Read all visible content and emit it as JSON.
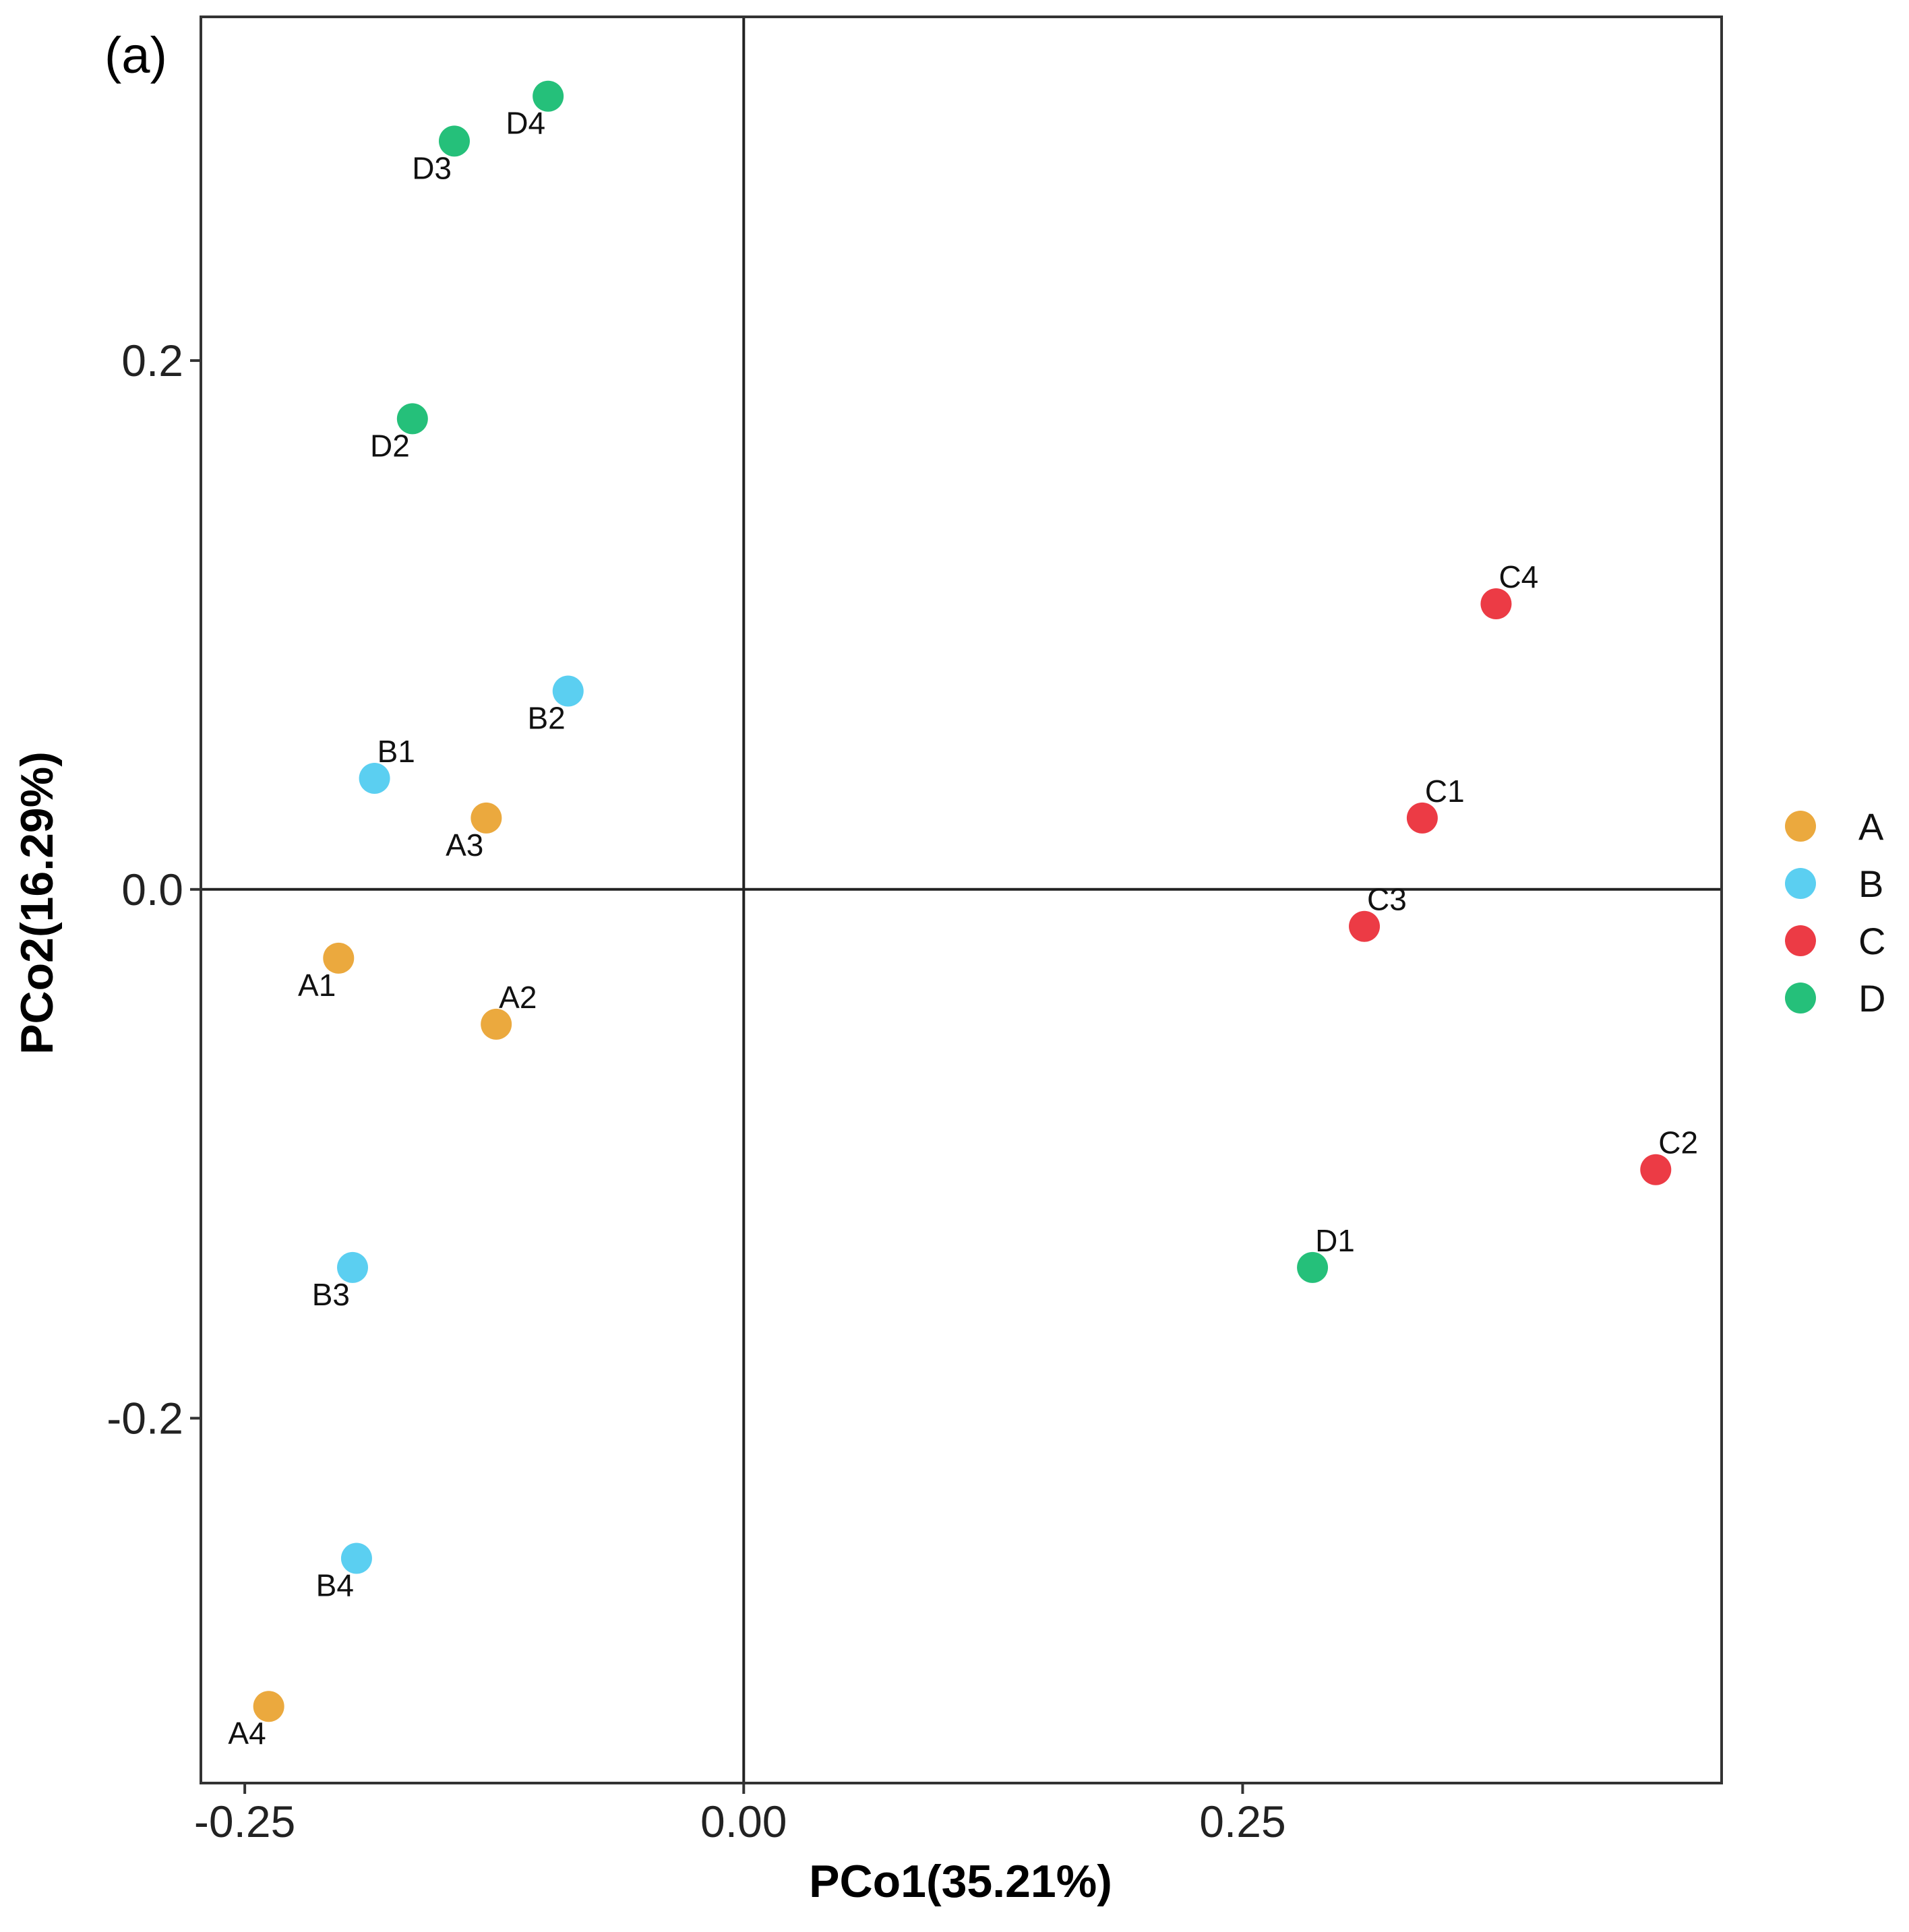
{
  "chart_data": {
    "type": "scatter",
    "panel_label": "(a)",
    "xlabel": "PCo1(35.21%)",
    "ylabel": "PCo2(16.29%)",
    "xlim": [
      -0.272,
      0.49
    ],
    "ylim": [
      -0.338,
      0.33
    ],
    "xticks": [
      -0.25,
      0.0,
      0.25
    ],
    "xtick_labels": [
      "-0.25",
      "0.00",
      "0.25"
    ],
    "yticks": [
      -0.2,
      0.0,
      0.2
    ],
    "ytick_labels": [
      "-0.2",
      "0.0",
      "0.2"
    ],
    "reference_lines": {
      "x": 0,
      "y": 0
    },
    "grid": false,
    "legend_position": "right",
    "groups": [
      {
        "name": "A",
        "color": "#EBA93E"
      },
      {
        "name": "B",
        "color": "#5BCFF1"
      },
      {
        "name": "C",
        "color": "#EC3B45"
      },
      {
        "name": "D",
        "color": "#25C07A"
      }
    ],
    "points": [
      {
        "label": "A1",
        "group": "A",
        "x": -0.203,
        "y": -0.026,
        "label_pos": "below-left"
      },
      {
        "label": "A2",
        "group": "A",
        "x": -0.124,
        "y": -0.051,
        "label_pos": "above-right"
      },
      {
        "label": "A3",
        "group": "A",
        "x": -0.129,
        "y": 0.027,
        "label_pos": "below-left"
      },
      {
        "label": "A4",
        "group": "A",
        "x": -0.238,
        "y": -0.309,
        "label_pos": "below-left"
      },
      {
        "label": "B1",
        "group": "B",
        "x": -0.185,
        "y": 0.042,
        "label_pos": "above-right"
      },
      {
        "label": "B2",
        "group": "B",
        "x": -0.088,
        "y": 0.075,
        "label_pos": "below-left"
      },
      {
        "label": "B3",
        "group": "B",
        "x": -0.196,
        "y": -0.143,
        "label_pos": "below-left"
      },
      {
        "label": "B4",
        "group": "B",
        "x": -0.194,
        "y": -0.253,
        "label_pos": "below-left"
      },
      {
        "label": "C1",
        "group": "C",
        "x": 0.34,
        "y": 0.027,
        "label_pos": "above-right"
      },
      {
        "label": "C2",
        "group": "C",
        "x": 0.457,
        "y": -0.106,
        "label_pos": "above-right"
      },
      {
        "label": "C3",
        "group": "C",
        "x": 0.311,
        "y": -0.014,
        "label_pos": "above-right"
      },
      {
        "label": "C4",
        "group": "C",
        "x": 0.377,
        "y": 0.108,
        "label_pos": "above-right"
      },
      {
        "label": "D1",
        "group": "D",
        "x": 0.285,
        "y": -0.143,
        "label_pos": "above-right"
      },
      {
        "label": "D2",
        "group": "D",
        "x": -0.166,
        "y": 0.178,
        "label_pos": "below-left"
      },
      {
        "label": "D3",
        "group": "D",
        "x": -0.145,
        "y": 0.283,
        "label_pos": "below-left"
      },
      {
        "label": "D4",
        "group": "D",
        "x": -0.098,
        "y": 0.3,
        "label_pos": "below-left"
      }
    ]
  }
}
